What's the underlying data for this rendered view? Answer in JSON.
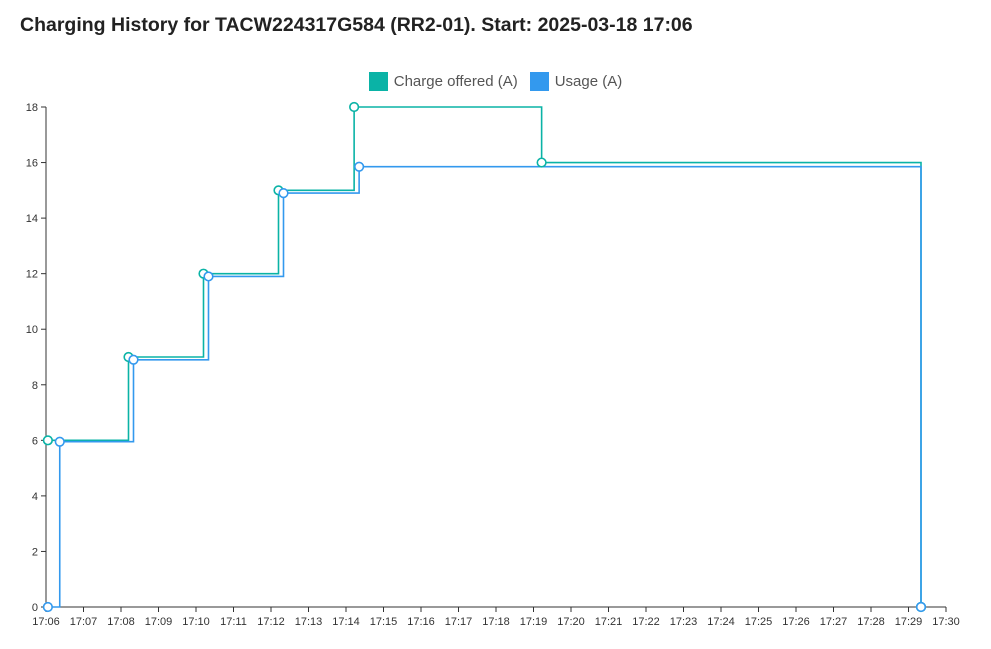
{
  "chart_data": {
    "type": "line",
    "title": "Charging History for TACW224317G584 (RR2-01). Start: 2025-03-18 17:06",
    "xlabel": "",
    "ylabel": "",
    "x_ticks": [
      "17:06",
      "17:07",
      "17:08",
      "17:09",
      "17:10",
      "17:11",
      "17:12",
      "17:13",
      "17:14",
      "17:15",
      "17:16",
      "17:17",
      "17:18",
      "17:19",
      "17:20",
      "17:21",
      "17:22",
      "17:23",
      "17:24",
      "17:25",
      "17:26",
      "17:27",
      "17:28",
      "17:29",
      "17:30"
    ],
    "y_ticks": [
      0,
      2,
      4,
      6,
      8,
      10,
      12,
      14,
      16,
      18
    ],
    "xlim": [
      "17:06",
      "17:30"
    ],
    "ylim": [
      0,
      18
    ],
    "step": true,
    "grid": false,
    "legend_position": "top-center",
    "series": [
      {
        "name": "Charge offered (A)",
        "color": "#0ab3a6",
        "points": [
          {
            "x": "17:06:03",
            "y": 6
          },
          {
            "x": "17:08:12",
            "y": 9
          },
          {
            "x": "17:10:12",
            "y": 12
          },
          {
            "x": "17:12:12",
            "y": 15
          },
          {
            "x": "17:14:13",
            "y": 18
          },
          {
            "x": "17:19:13",
            "y": 16
          },
          {
            "x": "17:29:20",
            "y": 0
          }
        ]
      },
      {
        "name": "Usage (A)",
        "color": "#3399ee",
        "points": [
          {
            "x": "17:06:03",
            "y": 0
          },
          {
            "x": "17:06:22",
            "y": 5.95
          },
          {
            "x": "17:08:20",
            "y": 8.9
          },
          {
            "x": "17:10:20",
            "y": 11.9
          },
          {
            "x": "17:12:20",
            "y": 14.9
          },
          {
            "x": "17:14:21",
            "y": 15.85
          },
          {
            "x": "17:29:20",
            "y": 0
          }
        ]
      }
    ]
  }
}
